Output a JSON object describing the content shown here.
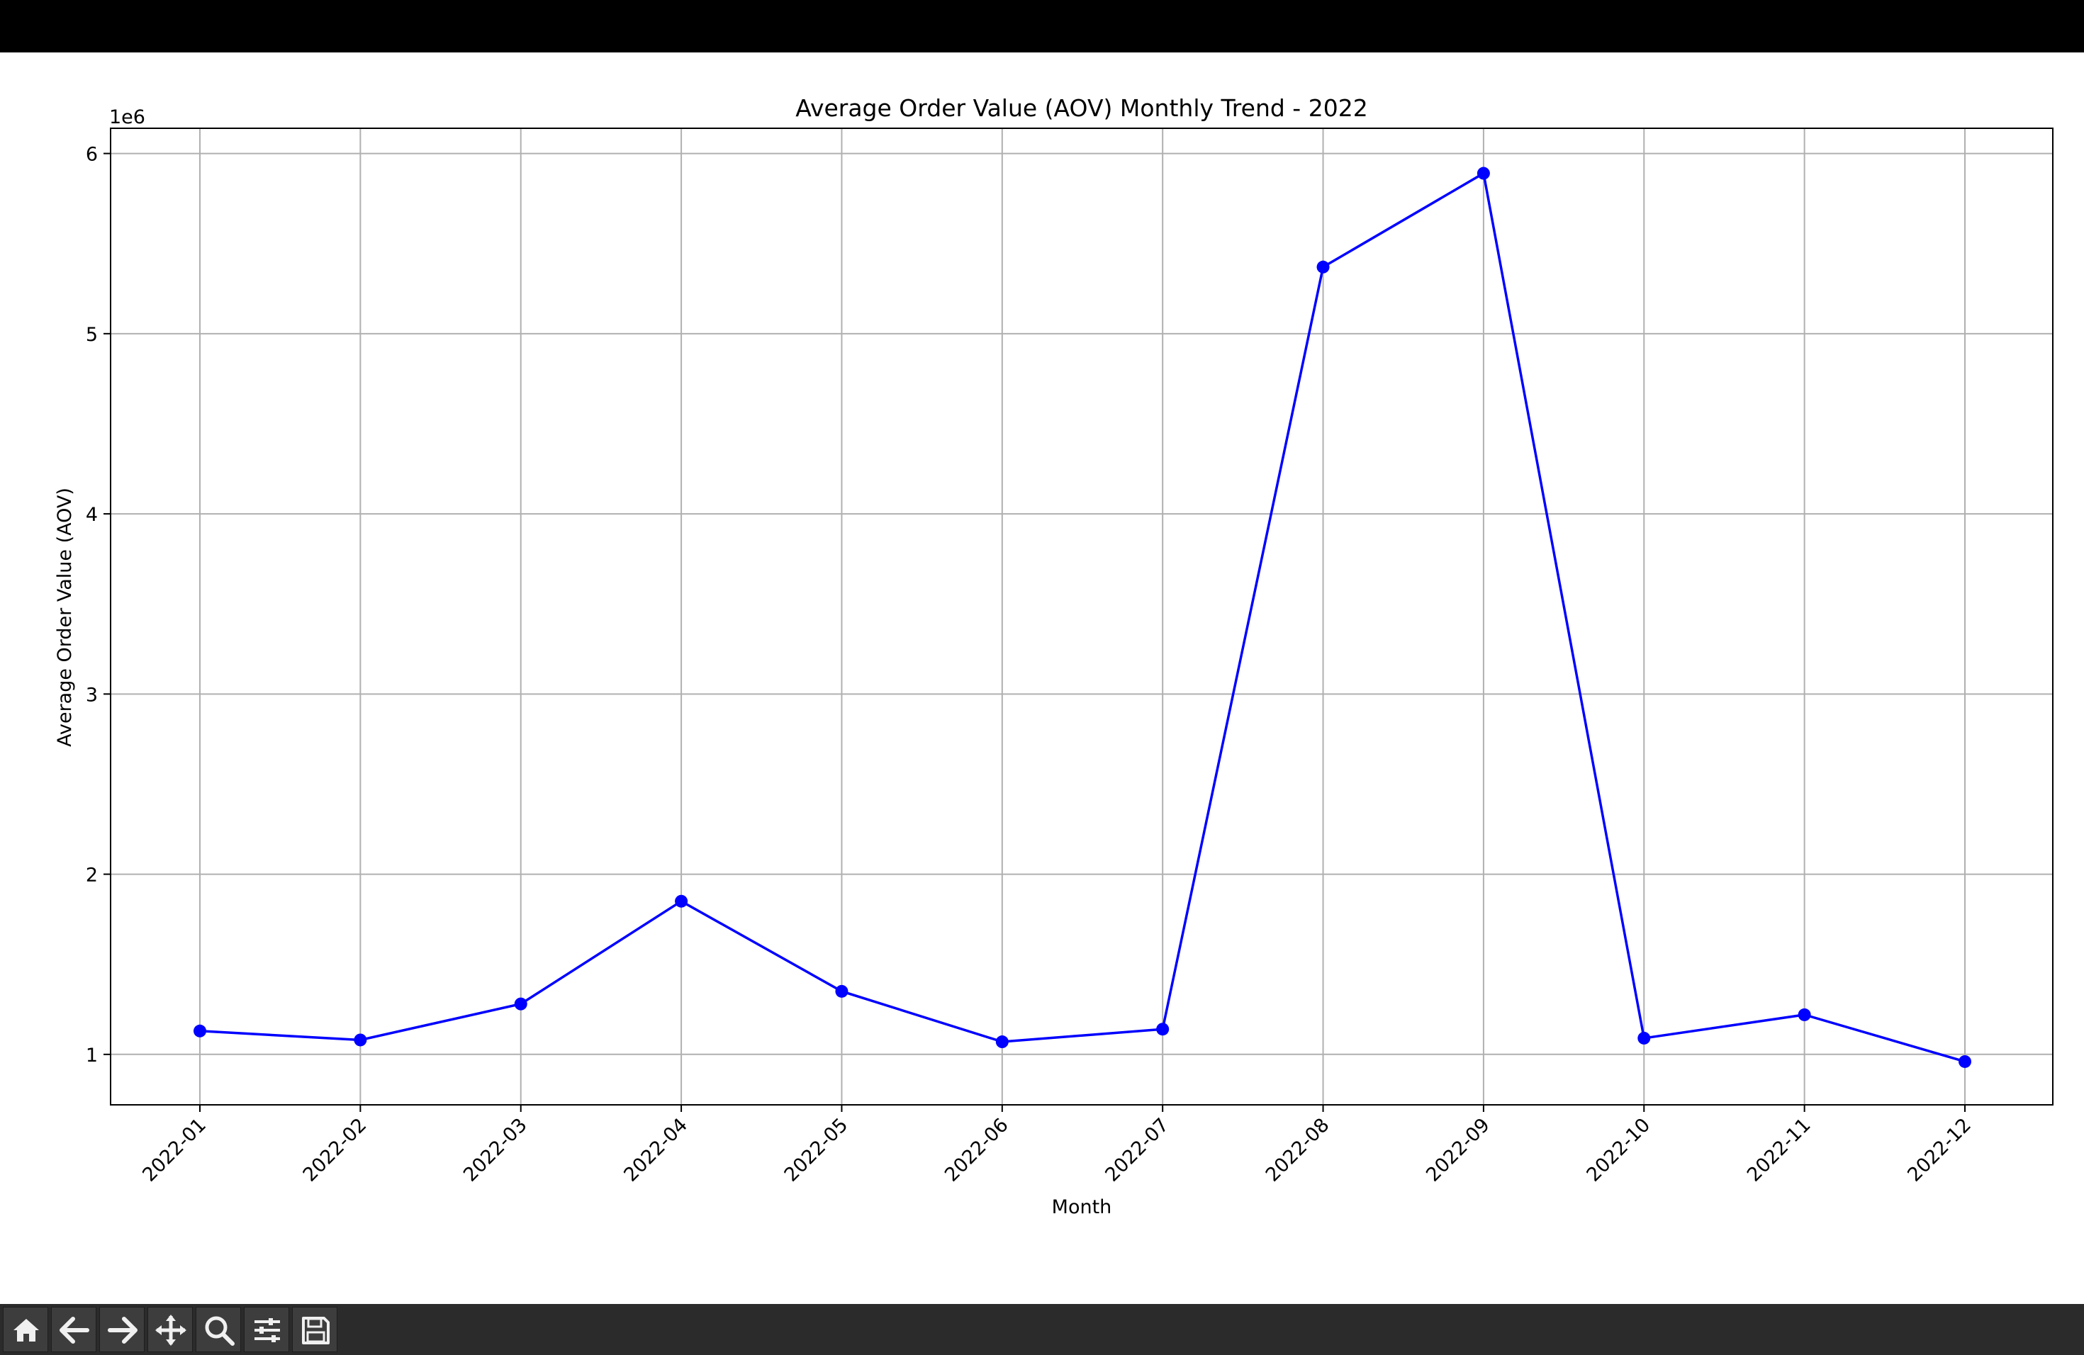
{
  "chart_data": {
    "type": "line",
    "title": "Average Order Value (AOV) Monthly Trend - 2022",
    "xlabel": "Month",
    "ylabel": "Average Order Value (AOV)",
    "y_offset_label": "1e6",
    "categories": [
      "2022-01",
      "2022-02",
      "2022-03",
      "2022-04",
      "2022-05",
      "2022-06",
      "2022-07",
      "2022-08",
      "2022-09",
      "2022-10",
      "2022-11",
      "2022-12"
    ],
    "series": [
      {
        "values": [
          1.13,
          1.08,
          1.28,
          1.85,
          1.35,
          1.07,
          1.14,
          5.37,
          5.89,
          1.09,
          1.22,
          0.96
        ]
      }
    ],
    "yticks": [
      1,
      2,
      3,
      4,
      5,
      6
    ],
    "ylim": [
      0.72,
      6.14
    ],
    "grid": true,
    "line_color": "#0000ff",
    "marker": "circle"
  },
  "toolbar": {
    "buttons": [
      "home-icon",
      "back-icon",
      "forward-icon",
      "pan-icon",
      "zoom-icon",
      "configure-icon",
      "save-icon"
    ]
  }
}
